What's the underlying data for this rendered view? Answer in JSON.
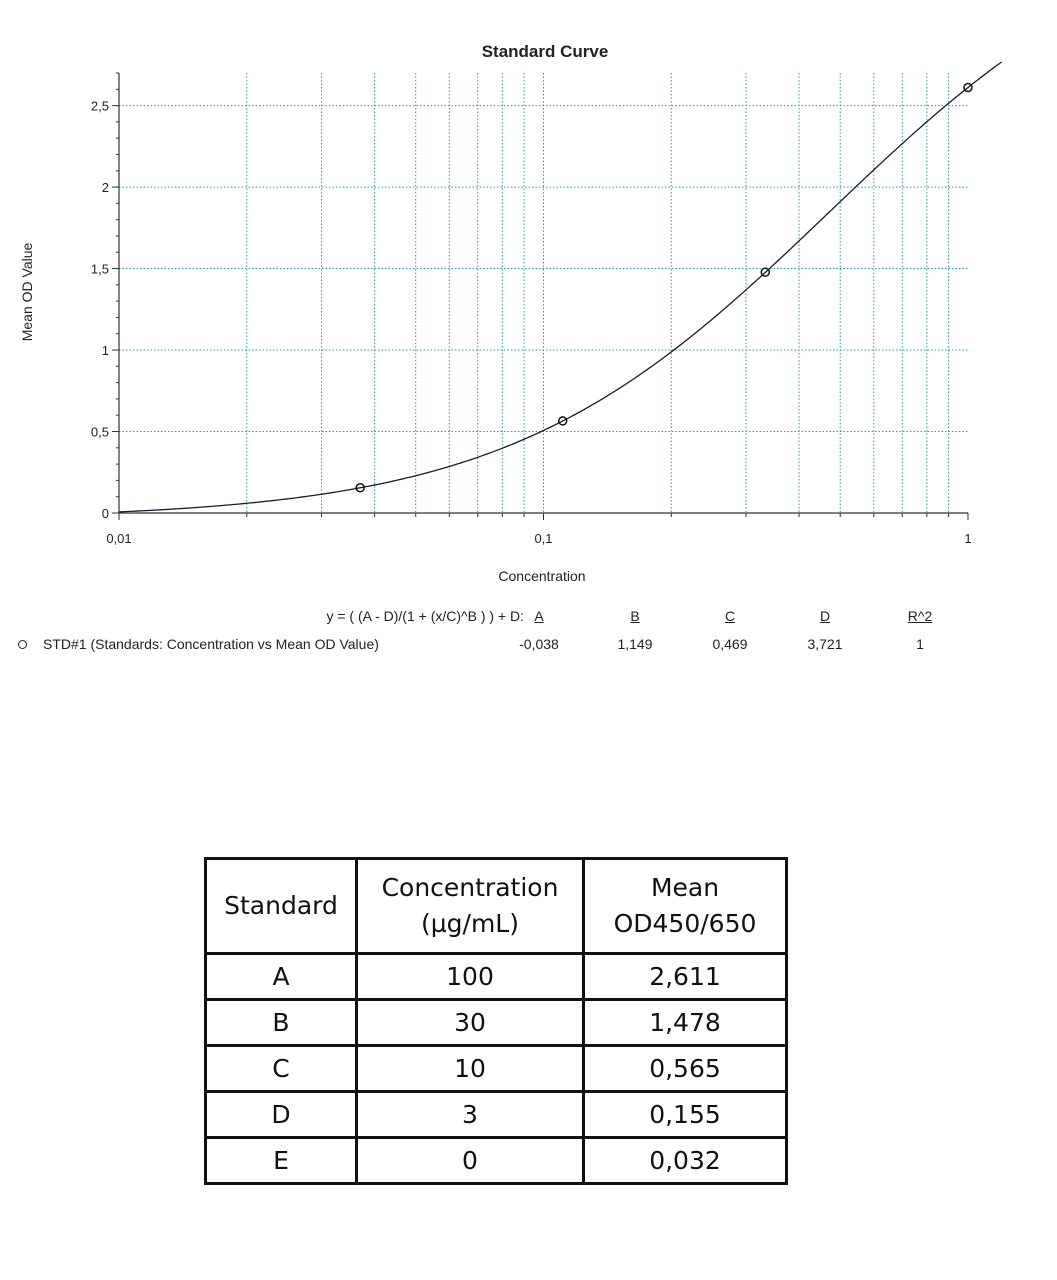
{
  "chart_data": {
    "type": "scatter",
    "title": "Standard Curve",
    "xlabel": "Concentration",
    "ylabel": "Mean OD Value",
    "x_scale": "log",
    "xlim": [
      0.01,
      1
    ],
    "ylim": [
      0,
      2.7
    ],
    "x_ticks": [
      {
        "value": 0.01,
        "label": "0,01"
      },
      {
        "value": 0.1,
        "label": "0,1"
      },
      {
        "value": 1,
        "label": "1"
      }
    ],
    "y_ticks": [
      {
        "value": 0,
        "label": "0"
      },
      {
        "value": 0.5,
        "label": "0,5"
      },
      {
        "value": 1,
        "label": "1"
      },
      {
        "value": 1.5,
        "label": "1,5"
      },
      {
        "value": 2,
        "label": "2"
      },
      {
        "value": 2.5,
        "label": "2,5"
      }
    ],
    "grid": true,
    "series": [
      {
        "name": "STD#1 (Standards: Concentration vs Mean OD Value)",
        "points": [
          {
            "x": 0.037,
            "y": 0.155
          },
          {
            "x": 0.111,
            "y": 0.565
          },
          {
            "x": 0.333,
            "y": 1.478
          },
          {
            "x": 1,
            "y": 2.611
          }
        ]
      }
    ],
    "fit": {
      "equation": "y = ( (A - D)/(1 + (x/C)^B ) ) + D:",
      "params": [
        {
          "name": "A",
          "label": "-0,038",
          "value": -0.038
        },
        {
          "name": "B",
          "label": "1,149",
          "value": 1.149
        },
        {
          "name": "C",
          "label": "0,469",
          "value": 0.469
        },
        {
          "name": "D",
          "label": "3,721",
          "value": 3.721
        },
        {
          "name": "R^2",
          "label": "1",
          "value": 1
        }
      ]
    }
  },
  "table": {
    "headers": {
      "standard": "Standard",
      "concentration_line1": "Concentration",
      "concentration_line2": "(µg/mL)",
      "od_line1": "Mean",
      "od_line2": "OD450/650"
    },
    "rows": [
      {
        "standard": "A",
        "concentration": "100",
        "od": "2,611"
      },
      {
        "standard": "B",
        "concentration": "30",
        "od": "1,478"
      },
      {
        "standard": "C",
        "concentration": "10",
        "od": "0,565"
      },
      {
        "standard": "D",
        "concentration": "3",
        "od": "0,155"
      },
      {
        "standard": "E",
        "concentration": "0",
        "od": "0,032"
      }
    ]
  }
}
